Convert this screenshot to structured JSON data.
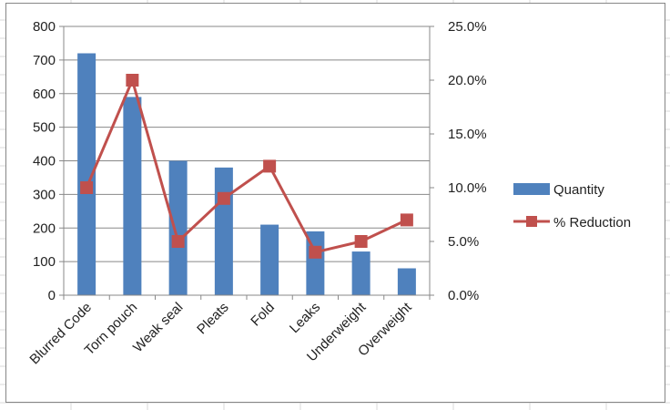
{
  "colors": {
    "bar": "#4f81bd",
    "line": "#c0504d",
    "gridline": "#888888",
    "sheet_gridline": "#d9d9d9",
    "axis": "#888888"
  },
  "chart_data": {
    "type": "bar",
    "combo": "bar-line-secondary-axis",
    "title": "",
    "xlabel": "",
    "ylabel": "",
    "categories": [
      "Blurred Code",
      "Torn pouch",
      "Weak seal",
      "Pleats",
      "Fold",
      "Leaks",
      "Underweight",
      "Overweight"
    ],
    "series": [
      {
        "name": "Quantity",
        "type": "bar",
        "axis": "primary",
        "values": [
          720,
          590,
          400,
          380,
          210,
          190,
          130,
          80
        ]
      },
      {
        "name": "% Reduction",
        "type": "line",
        "axis": "secondary",
        "marker": "square",
        "values": [
          0.1,
          0.2,
          0.05,
          0.09,
          0.12,
          0.04,
          0.05,
          0.07
        ]
      }
    ],
    "ylim": [
      0,
      800
    ],
    "y_ticks": [
      "0",
      "100",
      "200",
      "300",
      "400",
      "500",
      "600",
      "700",
      "800"
    ],
    "y2lim": [
      0,
      0.25
    ],
    "y2_ticks": [
      "0.0%",
      "5.0%",
      "10.0%",
      "15.0%",
      "20.0%",
      "25.0%"
    ],
    "grid": true,
    "legend_position": "right"
  }
}
